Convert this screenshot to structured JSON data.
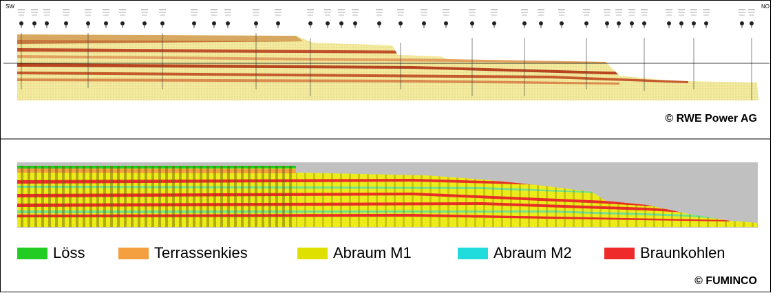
{
  "top_panel": {
    "left_label": "SW",
    "right_label": "NO",
    "credit": "© RWE Power AG"
  },
  "bottom_panel": {
    "legend": [
      {
        "label": "Löss",
        "color": "#22cc22"
      },
      {
        "label": "Terrassenkies",
        "color": "#f5a040"
      },
      {
        "label": "Abraum M1",
        "color": "#e0e000"
      },
      {
        "label": "Abraum M2",
        "color": "#20dcdc"
      },
      {
        "label": "Braunkohlen",
        "color": "#ee2a2a"
      }
    ],
    "credit": "© FUMINCO"
  }
}
